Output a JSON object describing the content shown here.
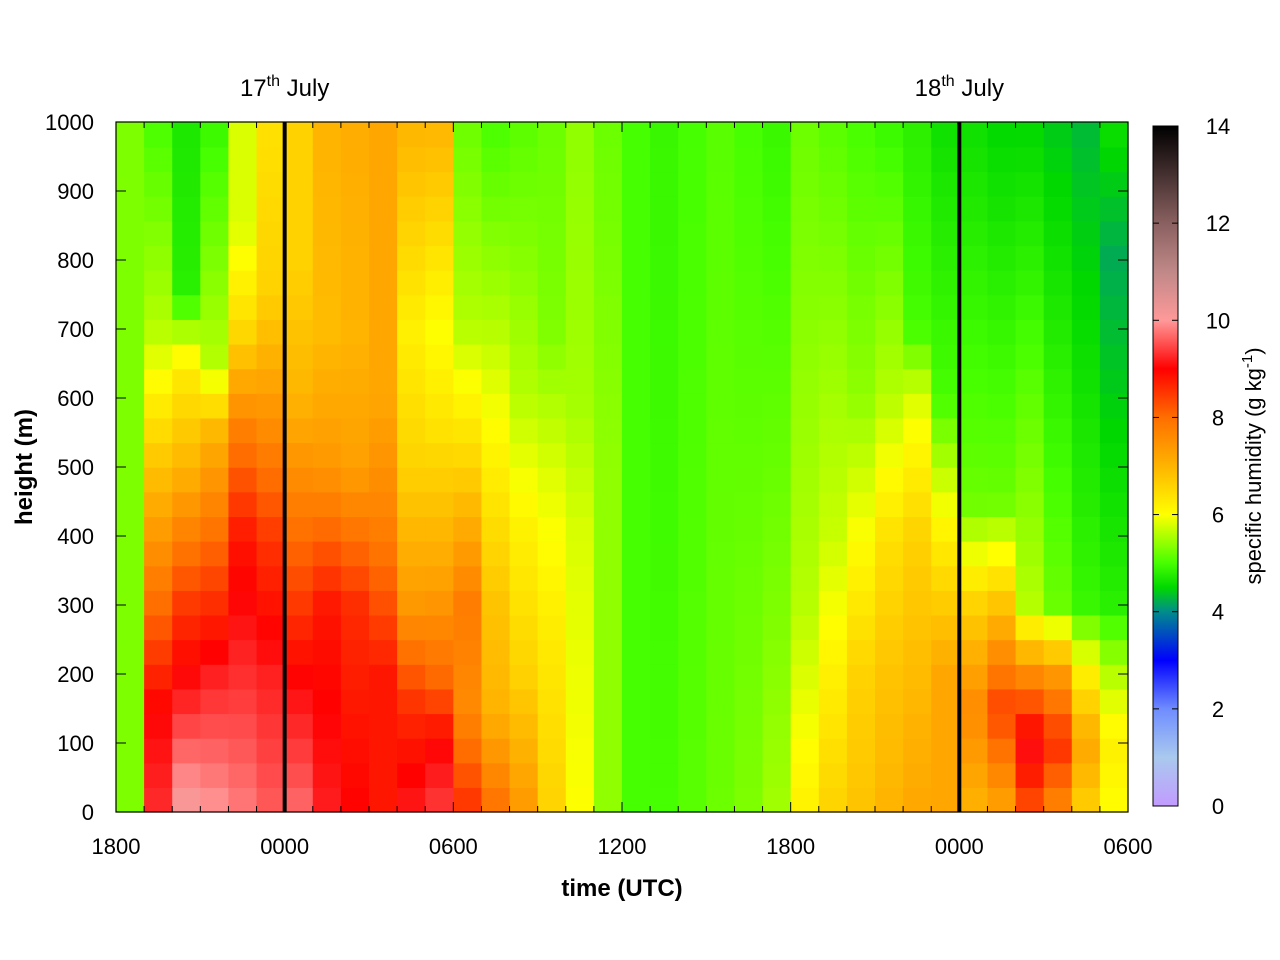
{
  "chart_data": {
    "type": "heatmap",
    "xlabel": "time (UTC)",
    "ylabel": "height (m)",
    "colorbar_label": "specific humidity (g kg",
    "colorbar_label_sup": "-1",
    "colorbar_label_close": ")",
    "x_range_hours": [
      0,
      36
    ],
    "x_ticks": [
      {
        "hours": 0,
        "label": "1800"
      },
      {
        "hours": 6,
        "label": "0000"
      },
      {
        "hours": 12,
        "label": "0600"
      },
      {
        "hours": 18,
        "label": "1200"
      },
      {
        "hours": 24,
        "label": "1800"
      },
      {
        "hours": 30,
        "label": "0000"
      },
      {
        "hours": 36,
        "label": "0600"
      }
    ],
    "ylim": [
      0,
      1000
    ],
    "y_ticks": [
      0,
      100,
      200,
      300,
      400,
      500,
      600,
      700,
      800,
      900,
      1000
    ],
    "colorbar_range": [
      0,
      14
    ],
    "colorbar_ticks": [
      0,
      2,
      4,
      6,
      8,
      10,
      12,
      14
    ],
    "colormap": [
      {
        "v": 0,
        "color": "#c29bff"
      },
      {
        "v": 1,
        "color": "#a9c9ee"
      },
      {
        "v": 2,
        "color": "#6f8cff"
      },
      {
        "v": 3,
        "color": "#0000ff"
      },
      {
        "v": 4,
        "color": "#008c8c"
      },
      {
        "v": 4.5,
        "color": "#00d800"
      },
      {
        "v": 5,
        "color": "#46ff00"
      },
      {
        "v": 6,
        "color": "#ffff00"
      },
      {
        "v": 7,
        "color": "#ffb400"
      },
      {
        "v": 8,
        "color": "#ff6e00"
      },
      {
        "v": 9,
        "color": "#ff0000"
      },
      {
        "v": 10,
        "color": "#ff9999"
      },
      {
        "v": 11,
        "color": "#c08888"
      },
      {
        "v": 12,
        "color": "#8a6060"
      },
      {
        "v": 14,
        "color": "#000000"
      }
    ],
    "day_markers": [
      {
        "hours": 6,
        "day": "17",
        "suffix": "th",
        "month": "July"
      },
      {
        "hours": 30,
        "day": "18",
        "suffix": "th",
        "month": "July"
      }
    ],
    "grid": {
      "cols": 36,
      "rows": 29,
      "x_start_hours": 0,
      "x_step_hours": 1,
      "y_start_m": 0,
      "y_step_m": 35.7,
      "profiles_note": "",
      "column_profiles": [
        [
          [
            0,
            5.3
          ],
          [
            1000,
            5.3
          ]
        ],
        [
          [
            0,
            9.3
          ],
          [
            150,
            9.0
          ],
          [
            300,
            8.0
          ],
          [
            500,
            6.8
          ],
          [
            700,
            5.6
          ],
          [
            1000,
            5.0
          ]
        ],
        [
          [
            0,
            10.2
          ],
          [
            150,
            9.3
          ],
          [
            300,
            8.5
          ],
          [
            500,
            7.0
          ],
          [
            650,
            6.2
          ],
          [
            750,
            4.8
          ],
          [
            1000,
            4.7
          ]
        ],
        [
          [
            0,
            10.0
          ],
          [
            200,
            9.2
          ],
          [
            350,
            8.3
          ],
          [
            550,
            7.0
          ],
          [
            650,
            5.6
          ],
          [
            1000,
            4.9
          ]
        ],
        [
          [
            0,
            9.8
          ],
          [
            200,
            9.3
          ],
          [
            400,
            8.8
          ],
          [
            550,
            7.8
          ],
          [
            700,
            6.5
          ],
          [
            850,
            5.8
          ],
          [
            1000,
            5.8
          ]
        ],
        [
          [
            0,
            9.6
          ],
          [
            200,
            9.2
          ],
          [
            400,
            8.5
          ],
          [
            550,
            7.6
          ],
          [
            750,
            6.6
          ],
          [
            1000,
            6.4
          ]
        ],
        [
          [
            0,
            9.7
          ],
          [
            200,
            9.0
          ],
          [
            400,
            8.0
          ],
          [
            600,
            7.0
          ],
          [
            800,
            6.6
          ],
          [
            1000,
            6.6
          ]
        ],
        [
          [
            0,
            9.2
          ],
          [
            300,
            8.8
          ],
          [
            500,
            7.4
          ],
          [
            700,
            6.9
          ],
          [
            1000,
            7.0
          ]
        ],
        [
          [
            0,
            9.0
          ],
          [
            300,
            8.6
          ],
          [
            500,
            7.3
          ],
          [
            700,
            7.0
          ],
          [
            1000,
            7.1
          ]
        ],
        [
          [
            0,
            8.8
          ],
          [
            200,
            8.8
          ],
          [
            400,
            7.8
          ],
          [
            600,
            7.2
          ],
          [
            1000,
            7.2
          ]
        ],
        [
          [
            0,
            9.2
          ],
          [
            150,
            8.6
          ],
          [
            300,
            7.4
          ],
          [
            500,
            6.6
          ],
          [
            700,
            6.2
          ],
          [
            1000,
            7.0
          ]
        ],
        [
          [
            0,
            9.4
          ],
          [
            100,
            9.0
          ],
          [
            200,
            8.0
          ],
          [
            350,
            7.2
          ],
          [
            550,
            6.4
          ],
          [
            700,
            6.0
          ],
          [
            1000,
            7.0
          ]
        ],
        [
          [
            0,
            8.6
          ],
          [
            150,
            7.6
          ],
          [
            300,
            7.8
          ],
          [
            500,
            6.6
          ],
          [
            700,
            5.6
          ],
          [
            1000,
            5.2
          ]
        ],
        [
          [
            0,
            8.0
          ],
          [
            150,
            7.0
          ],
          [
            300,
            6.8
          ],
          [
            500,
            6.2
          ],
          [
            700,
            5.6
          ],
          [
            1000,
            5.0
          ]
        ],
        [
          [
            0,
            7.4
          ],
          [
            200,
            6.6
          ],
          [
            400,
            6.2
          ],
          [
            600,
            5.6
          ],
          [
            1000,
            5.1
          ]
        ],
        [
          [
            0,
            6.6
          ],
          [
            300,
            6.2
          ],
          [
            500,
            5.8
          ],
          [
            700,
            5.3
          ],
          [
            1000,
            5.2
          ]
        ],
        [
          [
            0,
            6.0
          ],
          [
            400,
            5.8
          ],
          [
            600,
            5.5
          ],
          [
            1000,
            5.4
          ]
        ],
        [
          [
            0,
            5.4
          ],
          [
            500,
            5.4
          ],
          [
            1000,
            5.2
          ]
        ],
        [
          [
            0,
            5.0
          ],
          [
            1000,
            5.0
          ]
        ],
        [
          [
            0,
            5.0
          ],
          [
            1000,
            4.9
          ]
        ],
        [
          [
            0,
            5.1
          ],
          [
            1000,
            5.0
          ]
        ],
        [
          [
            0,
            5.2
          ],
          [
            1000,
            5.1
          ]
        ],
        [
          [
            0,
            5.3
          ],
          [
            1000,
            5.0
          ]
        ],
        [
          [
            0,
            5.5
          ],
          [
            300,
            5.3
          ],
          [
            1000,
            4.9
          ]
        ],
        [
          [
            0,
            6.2
          ],
          [
            300,
            5.6
          ],
          [
            1000,
            5.2
          ]
        ],
        [
          [
            0,
            6.6
          ],
          [
            200,
            6.2
          ],
          [
            400,
            5.7
          ],
          [
            1000,
            5.1
          ]
        ],
        [
          [
            0,
            6.8
          ],
          [
            200,
            6.6
          ],
          [
            400,
            6.0
          ],
          [
            600,
            5.4
          ],
          [
            1000,
            5.0
          ]
        ],
        [
          [
            0,
            7.0
          ],
          [
            200,
            6.8
          ],
          [
            400,
            6.4
          ],
          [
            600,
            5.6
          ],
          [
            1000,
            4.9
          ]
        ],
        [
          [
            0,
            7.2
          ],
          [
            200,
            6.9
          ],
          [
            400,
            6.6
          ],
          [
            600,
            5.8
          ],
          [
            700,
            5.0
          ],
          [
            1000,
            4.8
          ]
        ],
        [
          [
            0,
            7.2
          ],
          [
            200,
            7.2
          ],
          [
            400,
            6.2
          ],
          [
            600,
            5.0
          ],
          [
            1000,
            4.6
          ]
        ],
        [
          [
            0,
            7.0
          ],
          [
            150,
            7.6
          ],
          [
            300,
            6.6
          ],
          [
            450,
            5.2
          ],
          [
            1000,
            4.6
          ]
        ],
        [
          [
            0,
            7.2
          ],
          [
            150,
            8.4
          ],
          [
            300,
            6.8
          ],
          [
            450,
            5.2
          ],
          [
            1000,
            4.5
          ]
        ],
        [
          [
            0,
            8.2
          ],
          [
            100,
            9.2
          ],
          [
            200,
            7.6
          ],
          [
            300,
            5.6
          ],
          [
            1000,
            4.5
          ]
        ],
        [
          [
            0,
            7.6
          ],
          [
            100,
            8.6
          ],
          [
            200,
            7.4
          ],
          [
            300,
            5.2
          ],
          [
            1000,
            4.4
          ]
        ],
        [
          [
            0,
            6.6
          ],
          [
            100,
            7.2
          ],
          [
            200,
            6.2
          ],
          [
            300,
            4.9
          ],
          [
            1000,
            4.3
          ]
        ],
        [
          [
            0,
            6.0
          ],
          [
            100,
            6.2
          ],
          [
            200,
            5.6
          ],
          [
            300,
            4.8
          ],
          [
            800,
            4.2
          ],
          [
            1000,
            4.6
          ]
        ]
      ]
    }
  }
}
